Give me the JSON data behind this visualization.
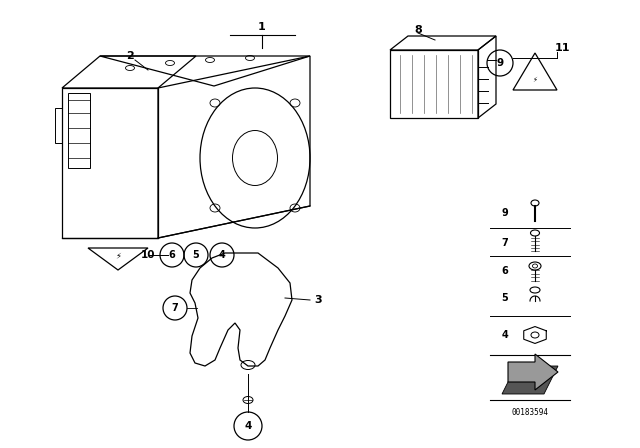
{
  "bg_color": "#ffffff",
  "fig_width": 6.4,
  "fig_height": 4.48,
  "dpi": 100,
  "part_number": "00183594"
}
